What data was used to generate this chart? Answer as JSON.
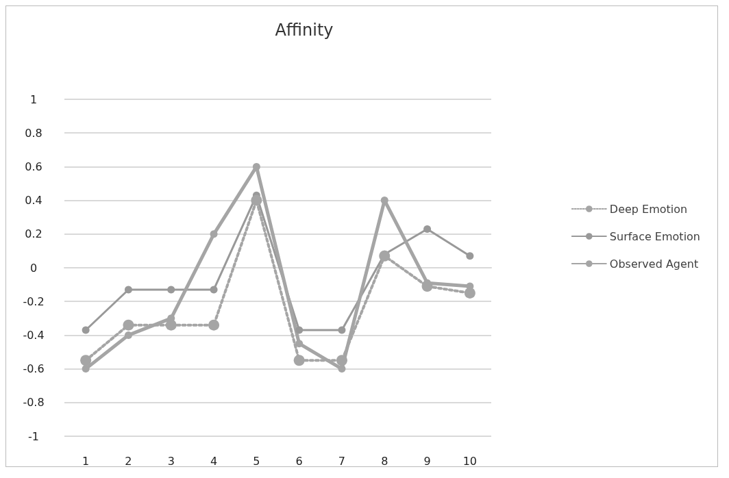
{
  "chart_data": {
    "type": "line",
    "title": "Affinity",
    "categories": [
      "1",
      "2",
      "3",
      "4",
      "5",
      "6",
      "7",
      "8",
      "9",
      "10"
    ],
    "series": [
      {
        "name": "Deep Emotion",
        "color": "#a5a5a5",
        "line_style": "dotted",
        "values": [
          -0.55,
          -0.34,
          -0.34,
          -0.34,
          0.4,
          -0.55,
          -0.55,
          0.07,
          -0.11,
          -0.15
        ]
      },
      {
        "name": "Surface Emotion",
        "color": "#999999",
        "line_style": "solid",
        "values": [
          -0.37,
          -0.13,
          -0.13,
          -0.13,
          0.43,
          -0.37,
          -0.37,
          0.08,
          0.23,
          0.07
        ]
      },
      {
        "name": "Observed Agent",
        "color": "#a5a5a5",
        "line_style": "solid",
        "values": [
          -0.6,
          -0.4,
          -0.3,
          0.2,
          0.6,
          -0.45,
          -0.6,
          0.4,
          -0.09,
          -0.11
        ]
      }
    ],
    "ylim": [
      -1,
      1
    ],
    "yticks": [
      -1,
      -0.8,
      -0.6,
      -0.4,
      -0.2,
      0,
      0.2,
      0.4,
      0.6,
      0.8,
      1
    ],
    "grid": "y",
    "legend": "right",
    "marker": "circle"
  }
}
